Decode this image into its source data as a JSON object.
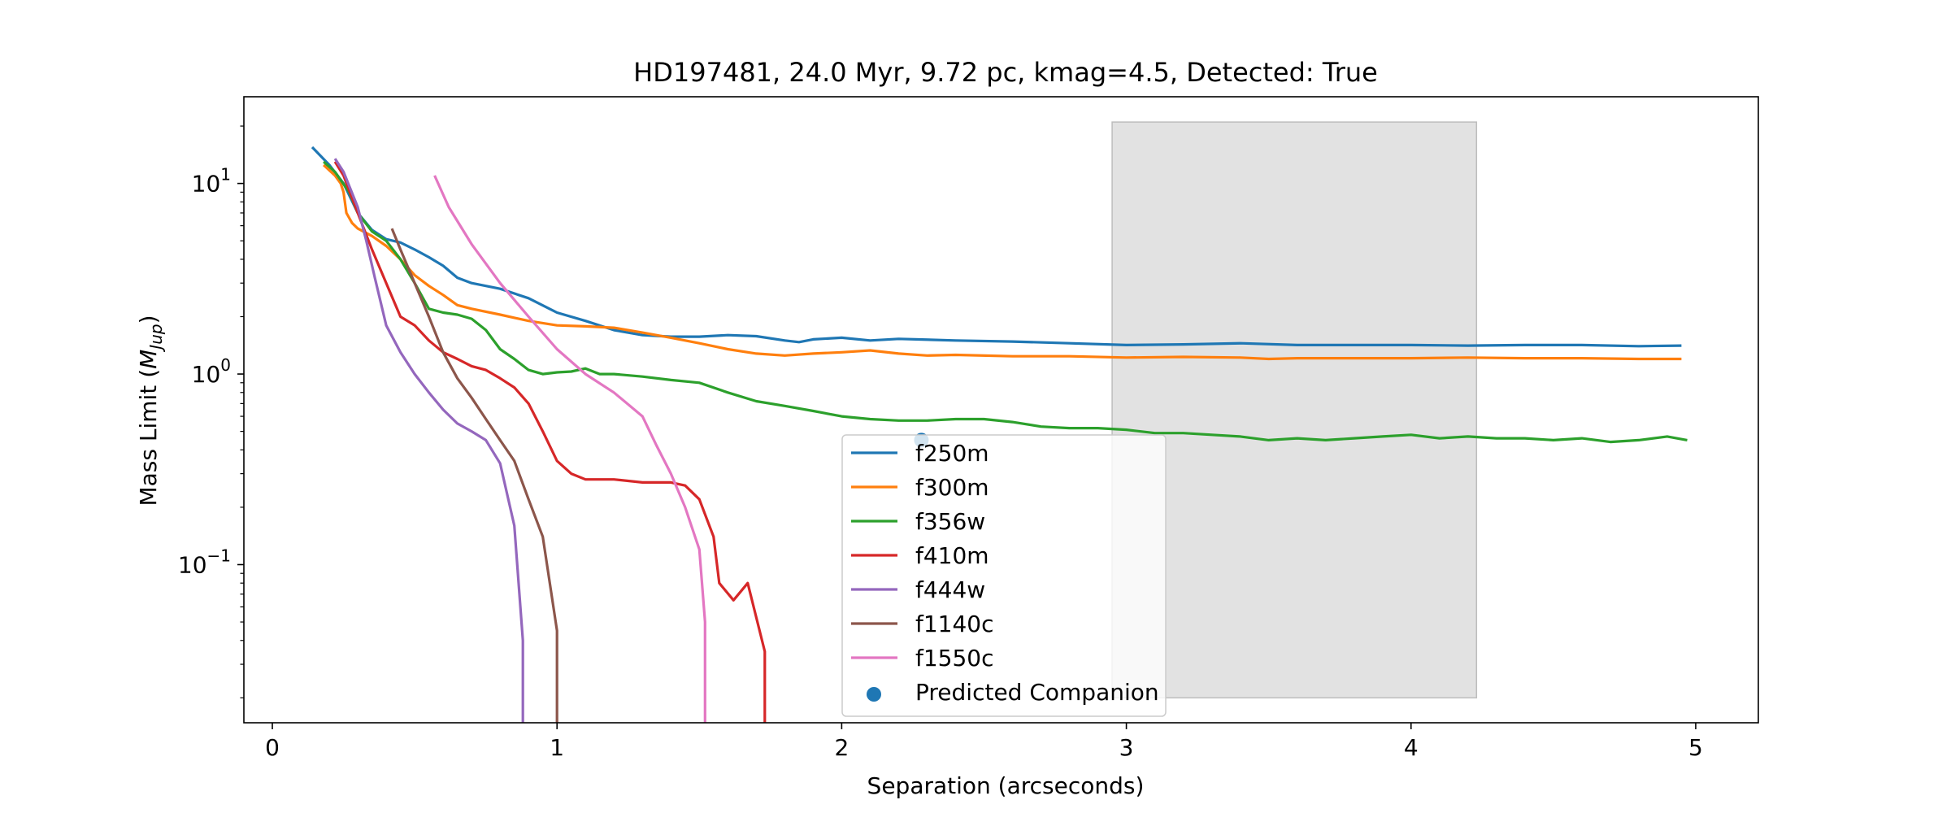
{
  "chart_data": {
    "type": "line",
    "title": "HD197481, 24.0 Myr, 9.72 pc, kmag=4.5, Detected: True",
    "xlabel": "Separation (arcseconds)",
    "ylabel": "Mass Limit (M_Jup)",
    "ylabel_parts": {
      "prefix": "Mass Limit (",
      "main": "M",
      "sub": "Jup",
      "suffix": ")"
    },
    "x_scale": "linear",
    "y_scale": "log",
    "xlim": [
      -0.1,
      5.22
    ],
    "ylim": [
      0.0148,
      28.5
    ],
    "xticks": [
      0,
      1,
      2,
      3,
      4,
      5
    ],
    "xtick_labels": [
      "0",
      "1",
      "2",
      "3",
      "4",
      "5"
    ],
    "yticks": [
      0.1,
      1,
      10
    ],
    "ytick_labels": [
      {
        "base": "10",
        "exp": "−1"
      },
      {
        "base": "10",
        "exp": "0"
      },
      {
        "base": "10",
        "exp": "1"
      }
    ],
    "grid": false,
    "legend_position": "lower-center",
    "shaded_region": {
      "x": [
        2.95,
        4.23
      ],
      "y": [
        0.02,
        21
      ],
      "color": "#d3d3d3"
    },
    "series": [
      {
        "name": "f250m",
        "color": "#1f77b4",
        "points": [
          [
            0.14,
            15.5
          ],
          [
            0.2,
            12.5
          ],
          [
            0.25,
            10
          ],
          [
            0.3,
            7
          ],
          [
            0.35,
            5.7
          ],
          [
            0.4,
            5.1
          ],
          [
            0.45,
            4.9
          ],
          [
            0.5,
            4.5
          ],
          [
            0.55,
            4.1
          ],
          [
            0.6,
            3.7
          ],
          [
            0.65,
            3.2
          ],
          [
            0.7,
            3.0
          ],
          [
            0.8,
            2.8
          ],
          [
            0.9,
            2.5
          ],
          [
            1.0,
            2.1
          ],
          [
            1.1,
            1.9
          ],
          [
            1.2,
            1.7
          ],
          [
            1.3,
            1.6
          ],
          [
            1.4,
            1.57
          ],
          [
            1.5,
            1.57
          ],
          [
            1.6,
            1.6
          ],
          [
            1.7,
            1.58
          ],
          [
            1.8,
            1.5
          ],
          [
            1.85,
            1.47
          ],
          [
            1.9,
            1.52
          ],
          [
            2.0,
            1.55
          ],
          [
            2.1,
            1.5
          ],
          [
            2.2,
            1.53
          ],
          [
            2.4,
            1.5
          ],
          [
            2.6,
            1.48
          ],
          [
            2.8,
            1.45
          ],
          [
            3.0,
            1.42
          ],
          [
            3.2,
            1.43
          ],
          [
            3.4,
            1.45
          ],
          [
            3.6,
            1.42
          ],
          [
            3.8,
            1.42
          ],
          [
            4.0,
            1.42
          ],
          [
            4.2,
            1.41
          ],
          [
            4.4,
            1.42
          ],
          [
            4.6,
            1.42
          ],
          [
            4.8,
            1.4
          ],
          [
            4.95,
            1.41
          ]
        ]
      },
      {
        "name": "f300m",
        "color": "#ff7f0e",
        "points": [
          [
            0.18,
            12.5
          ],
          [
            0.22,
            11
          ],
          [
            0.24,
            10
          ],
          [
            0.25,
            9
          ],
          [
            0.26,
            7
          ],
          [
            0.28,
            6.2
          ],
          [
            0.3,
            5.8
          ],
          [
            0.35,
            5.3
          ],
          [
            0.4,
            4.7
          ],
          [
            0.45,
            4.0
          ],
          [
            0.5,
            3.3
          ],
          [
            0.55,
            2.9
          ],
          [
            0.6,
            2.6
          ],
          [
            0.65,
            2.3
          ],
          [
            0.7,
            2.2
          ],
          [
            0.8,
            2.05
          ],
          [
            0.9,
            1.9
          ],
          [
            1.0,
            1.8
          ],
          [
            1.1,
            1.78
          ],
          [
            1.2,
            1.75
          ],
          [
            1.3,
            1.65
          ],
          [
            1.4,
            1.55
          ],
          [
            1.5,
            1.45
          ],
          [
            1.6,
            1.35
          ],
          [
            1.7,
            1.28
          ],
          [
            1.8,
            1.25
          ],
          [
            1.9,
            1.28
          ],
          [
            2.0,
            1.3
          ],
          [
            2.1,
            1.33
          ],
          [
            2.2,
            1.28
          ],
          [
            2.3,
            1.25
          ],
          [
            2.4,
            1.26
          ],
          [
            2.6,
            1.24
          ],
          [
            2.8,
            1.24
          ],
          [
            3.0,
            1.22
          ],
          [
            3.2,
            1.23
          ],
          [
            3.4,
            1.22
          ],
          [
            3.5,
            1.2
          ],
          [
            3.6,
            1.21
          ],
          [
            3.8,
            1.21
          ],
          [
            4.0,
            1.21
          ],
          [
            4.2,
            1.22
          ],
          [
            4.4,
            1.21
          ],
          [
            4.6,
            1.21
          ],
          [
            4.8,
            1.2
          ],
          [
            4.95,
            1.2
          ]
        ]
      },
      {
        "name": "f356w",
        "color": "#2ca02c",
        "points": [
          [
            0.18,
            13
          ],
          [
            0.22,
            11.5
          ],
          [
            0.27,
            9
          ],
          [
            0.3,
            7
          ],
          [
            0.35,
            5.6
          ],
          [
            0.4,
            5
          ],
          [
            0.45,
            4
          ],
          [
            0.5,
            3
          ],
          [
            0.55,
            2.2
          ],
          [
            0.6,
            2.1
          ],
          [
            0.65,
            2.05
          ],
          [
            0.7,
            1.95
          ],
          [
            0.75,
            1.7
          ],
          [
            0.8,
            1.35
          ],
          [
            0.85,
            1.2
          ],
          [
            0.9,
            1.05
          ],
          [
            0.95,
            1.0
          ],
          [
            1.0,
            1.02
          ],
          [
            1.05,
            1.03
          ],
          [
            1.1,
            1.07
          ],
          [
            1.15,
            1.0
          ],
          [
            1.2,
            1.0
          ],
          [
            1.3,
            0.97
          ],
          [
            1.4,
            0.93
          ],
          [
            1.5,
            0.9
          ],
          [
            1.6,
            0.8
          ],
          [
            1.7,
            0.72
          ],
          [
            1.8,
            0.68
          ],
          [
            1.9,
            0.64
          ],
          [
            2.0,
            0.6
          ],
          [
            2.1,
            0.58
          ],
          [
            2.2,
            0.57
          ],
          [
            2.3,
            0.57
          ],
          [
            2.4,
            0.58
          ],
          [
            2.5,
            0.58
          ],
          [
            2.6,
            0.56
          ],
          [
            2.7,
            0.53
          ],
          [
            2.8,
            0.52
          ],
          [
            2.9,
            0.52
          ],
          [
            3.0,
            0.51
          ],
          [
            3.1,
            0.49
          ],
          [
            3.2,
            0.49
          ],
          [
            3.3,
            0.48
          ],
          [
            3.4,
            0.47
          ],
          [
            3.5,
            0.45
          ],
          [
            3.6,
            0.46
          ],
          [
            3.7,
            0.45
          ],
          [
            3.8,
            0.46
          ],
          [
            3.9,
            0.47
          ],
          [
            4.0,
            0.48
          ],
          [
            4.1,
            0.46
          ],
          [
            4.2,
            0.47
          ],
          [
            4.3,
            0.46
          ],
          [
            4.4,
            0.46
          ],
          [
            4.5,
            0.45
          ],
          [
            4.6,
            0.46
          ],
          [
            4.7,
            0.44
          ],
          [
            4.8,
            0.45
          ],
          [
            4.9,
            0.47
          ],
          [
            4.97,
            0.45
          ]
        ]
      },
      {
        "name": "f410m",
        "color": "#d62728",
        "points": [
          [
            0.22,
            13
          ],
          [
            0.25,
            11
          ],
          [
            0.3,
            7
          ],
          [
            0.35,
            4.5
          ],
          [
            0.4,
            3
          ],
          [
            0.45,
            2.0
          ],
          [
            0.5,
            1.8
          ],
          [
            0.55,
            1.5
          ],
          [
            0.6,
            1.3
          ],
          [
            0.65,
            1.2
          ],
          [
            0.7,
            1.1
          ],
          [
            0.75,
            1.05
          ],
          [
            0.8,
            0.95
          ],
          [
            0.85,
            0.85
          ],
          [
            0.9,
            0.7
          ],
          [
            0.95,
            0.5
          ],
          [
            1.0,
            0.35
          ],
          [
            1.05,
            0.3
          ],
          [
            1.1,
            0.28
          ],
          [
            1.2,
            0.28
          ],
          [
            1.3,
            0.27
          ],
          [
            1.4,
            0.27
          ],
          [
            1.45,
            0.26
          ],
          [
            1.5,
            0.22
          ],
          [
            1.55,
            0.14
          ],
          [
            1.57,
            0.08
          ],
          [
            1.62,
            0.065
          ],
          [
            1.67,
            0.08
          ],
          [
            1.73,
            0.035
          ],
          [
            1.73,
            0.01
          ]
        ]
      },
      {
        "name": "f444w",
        "color": "#9467bd",
        "points": [
          [
            0.22,
            13.5
          ],
          [
            0.25,
            11.5
          ],
          [
            0.3,
            7.5
          ],
          [
            0.33,
            5
          ],
          [
            0.36,
            3.2
          ],
          [
            0.4,
            1.8
          ],
          [
            0.45,
            1.3
          ],
          [
            0.5,
            1.0
          ],
          [
            0.55,
            0.8
          ],
          [
            0.6,
            0.65
          ],
          [
            0.65,
            0.55
          ],
          [
            0.7,
            0.5
          ],
          [
            0.75,
            0.45
          ],
          [
            0.8,
            0.34
          ],
          [
            0.85,
            0.16
          ],
          [
            0.88,
            0.04
          ],
          [
            0.88,
            0.01
          ]
        ]
      },
      {
        "name": "f1140c",
        "color": "#8c564b",
        "points": [
          [
            0.42,
            5.8
          ],
          [
            0.45,
            4.5
          ],
          [
            0.5,
            3.0
          ],
          [
            0.55,
            2.0
          ],
          [
            0.6,
            1.3
          ],
          [
            0.65,
            0.95
          ],
          [
            0.7,
            0.75
          ],
          [
            0.75,
            0.58
          ],
          [
            0.8,
            0.45
          ],
          [
            0.85,
            0.35
          ],
          [
            0.9,
            0.22
          ],
          [
            0.95,
            0.14
          ],
          [
            1.0,
            0.045
          ],
          [
            1.0,
            0.01
          ]
        ]
      },
      {
        "name": "f1550c",
        "color": "#e377c2",
        "points": [
          [
            0.57,
            11
          ],
          [
            0.62,
            7.5
          ],
          [
            0.7,
            4.8
          ],
          [
            0.8,
            3.0
          ],
          [
            0.9,
            2.0
          ],
          [
            1.0,
            1.35
          ],
          [
            1.1,
            1.0
          ],
          [
            1.2,
            0.8
          ],
          [
            1.3,
            0.6
          ],
          [
            1.35,
            0.42
          ],
          [
            1.4,
            0.3
          ],
          [
            1.45,
            0.2
          ],
          [
            1.5,
            0.12
          ],
          [
            1.52,
            0.05
          ],
          [
            1.52,
            0.01
          ]
        ]
      }
    ],
    "scatter": [
      {
        "name": "Predicted Companion",
        "color": "#1f77b4",
        "points": [
          [
            2.28,
            0.45
          ]
        ]
      }
    ]
  }
}
